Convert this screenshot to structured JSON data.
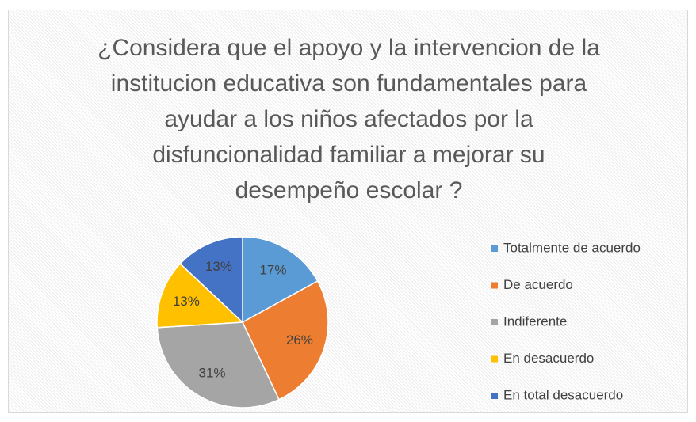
{
  "chart_data": {
    "type": "pie",
    "title": "¿Considera que el apoyo y la intervencion de la institucion educativa son fundamentales para ayudar a los  niños afectados por la disfuncionalidad familiar a mejorar su desempeño escolar ?",
    "categories": [
      "Totalmente de acuerdo",
      "De acuerdo",
      "Indiferente",
      "En desacuerdo",
      "En total desacuerdo"
    ],
    "values": [
      17,
      26,
      31,
      13,
      13
    ],
    "value_labels": [
      "17%",
      "26%",
      "31%",
      "13%",
      "13%"
    ],
    "colors": [
      "#5b9bd5",
      "#ed7d31",
      "#a5a5a5",
      "#ffc000",
      "#4472c4"
    ],
    "legend": "right"
  }
}
